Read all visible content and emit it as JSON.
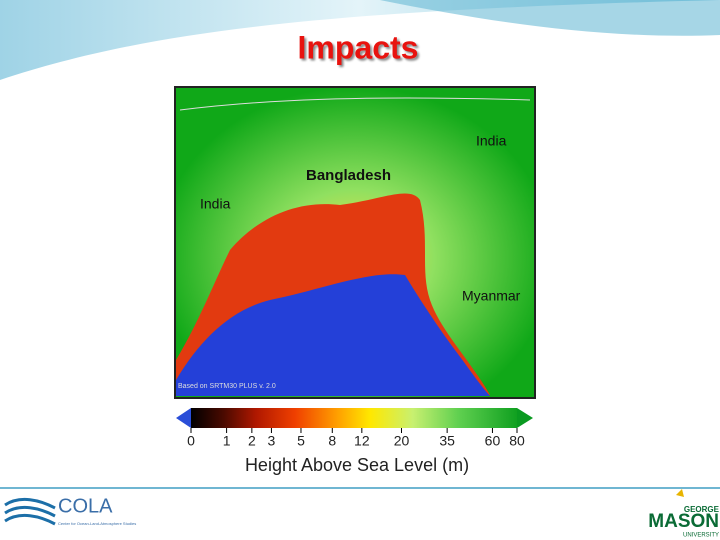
{
  "header": {
    "title": "Impacts"
  },
  "map": {
    "labels": [
      "India",
      "Bangladesh",
      "India",
      "Myanmar"
    ],
    "source": "Based on SRTM30 PLUS v. 2.0"
  },
  "colorbar": {
    "ticks": [
      0,
      1,
      2,
      3,
      5,
      8,
      12,
      20,
      35,
      60,
      80
    ],
    "label": "Height Above Sea Level (m)"
  },
  "footer": {
    "left_logo": "COLA",
    "left_logo_sub": "Center for Ocean-Land-Atmosphere Studies",
    "right_logo_top": "GEORGE",
    "right_logo": "MASON",
    "right_logo_bottom": "UNIVERSITY"
  }
}
